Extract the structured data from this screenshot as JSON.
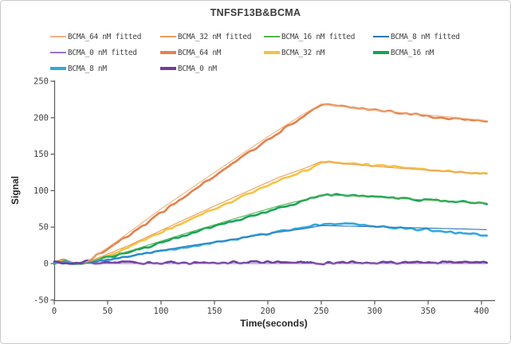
{
  "chart_data": {
    "type": "line",
    "title": "TNFSF13B&BCMA",
    "xlabel": "Time(seconds)",
    "ylabel": "Signal",
    "xlim": [
      0,
      411
    ],
    "ylim": [
      -50,
      250
    ],
    "x_ticks": [
      0,
      50,
      100,
      150,
      200,
      250,
      300,
      350,
      400
    ],
    "y_ticks": [
      -50,
      0,
      50,
      100,
      150,
      200,
      250
    ],
    "grid": false,
    "legend_position": "top",
    "axis_color": "#595959",
    "tick_label_color": "#3f3f3f",
    "phases": {
      "association_start_s": 28,
      "peak_s": 250,
      "end_s": 405
    },
    "series": [
      {
        "id": "fit64",
        "label": "BCMA_64 nM fitted",
        "role": "fitted",
        "color": "#F3B183",
        "width": 1.1,
        "noise": 0,
        "seed": 11,
        "keypoints": [
          [
            28,
            0
          ],
          [
            60,
            32
          ],
          [
            100,
            75
          ],
          [
            150,
            125
          ],
          [
            200,
            174
          ],
          [
            230,
            202
          ],
          [
            250,
            219
          ],
          [
            265,
            216
          ],
          [
            285,
            212.5
          ],
          [
            310,
            209
          ],
          [
            340,
            205
          ],
          [
            370,
            201
          ],
          [
            405,
            196
          ]
        ]
      },
      {
        "id": "fit32",
        "label": "BCMA_32 nM fitted",
        "role": "fitted",
        "color": "#EE9C5F",
        "width": 1.1,
        "noise": 0,
        "seed": 12,
        "keypoints": [
          [
            28,
            0
          ],
          [
            70,
            25
          ],
          [
            120,
            59
          ],
          [
            170,
            92
          ],
          [
            210,
            118
          ],
          [
            235,
            131
          ],
          [
            250,
            140
          ],
          [
            268,
            137.5
          ],
          [
            290,
            134.5
          ],
          [
            320,
            131
          ],
          [
            350,
            128
          ],
          [
            380,
            125
          ],
          [
            405,
            123
          ]
        ]
      },
      {
        "id": "fit16",
        "label": "BCMA_16 nM fitted",
        "role": "fitted",
        "color": "#55B055",
        "width": 1.1,
        "noise": 0,
        "seed": 13,
        "keypoints": [
          [
            28,
            0
          ],
          [
            70,
            17
          ],
          [
            120,
            40
          ],
          [
            170,
            62
          ],
          [
            210,
            79
          ],
          [
            235,
            88
          ],
          [
            250,
            94
          ],
          [
            268,
            93.5
          ],
          [
            290,
            92
          ],
          [
            320,
            89.5
          ],
          [
            350,
            87
          ],
          [
            380,
            84.5
          ],
          [
            405,
            83
          ]
        ]
      },
      {
        "id": "fit8",
        "label": "BCMA_8 nM fitted",
        "role": "fitted",
        "color": "#2E74B5",
        "width": 1.1,
        "noise": 0,
        "seed": 14,
        "keypoints": [
          [
            28,
            0
          ],
          [
            70,
            10
          ],
          [
            120,
            23
          ],
          [
            170,
            34
          ],
          [
            210,
            43
          ],
          [
            235,
            48
          ],
          [
            250,
            52
          ],
          [
            270,
            51.5
          ],
          [
            300,
            50.5
          ],
          [
            340,
            49
          ],
          [
            380,
            47.5
          ],
          [
            405,
            46.5
          ]
        ]
      },
      {
        "id": "fit0",
        "label": "BCMA_0 nM fitted",
        "role": "fitted",
        "color": "#9B72C8",
        "width": 1.1,
        "noise": 0,
        "seed": 15,
        "keypoints": [
          [
            28,
            0
          ],
          [
            405,
            0
          ]
        ]
      },
      {
        "id": "m64",
        "label": "BCMA_64 nM",
        "role": "measured",
        "color": "#E2824D",
        "width": 2.6,
        "noise": 1.3,
        "seed": 21,
        "keypoints": [
          [
            0,
            2
          ],
          [
            5,
            4
          ],
          [
            10,
            4.5
          ],
          [
            16,
            2
          ],
          [
            22,
            -0.5
          ],
          [
            28,
            0.5
          ],
          [
            60,
            29
          ],
          [
            100,
            70
          ],
          [
            150,
            120
          ],
          [
            200,
            170
          ],
          [
            225,
            194
          ],
          [
            240,
            208
          ],
          [
            248,
            216
          ],
          [
            254,
            218
          ],
          [
            262,
            216.5
          ],
          [
            275,
            214
          ],
          [
            295,
            211
          ],
          [
            315,
            208
          ],
          [
            335,
            205
          ],
          [
            355,
            202
          ],
          [
            375,
            199
          ],
          [
            390,
            197
          ],
          [
            405,
            195
          ]
        ]
      },
      {
        "id": "m32",
        "label": "BCMA_32 nM",
        "role": "measured",
        "color": "#F5C342",
        "width": 2.6,
        "noise": 1.1,
        "seed": 22,
        "keypoints": [
          [
            0,
            1.5
          ],
          [
            5,
            3
          ],
          [
            10,
            3.5
          ],
          [
            16,
            1.5
          ],
          [
            22,
            -0.5
          ],
          [
            28,
            0.5
          ],
          [
            60,
            17
          ],
          [
            100,
            43
          ],
          [
            150,
            75
          ],
          [
            200,
            107
          ],
          [
            225,
            122
          ],
          [
            240,
            131
          ],
          [
            250,
            139
          ],
          [
            256,
            140
          ],
          [
            265,
            139
          ],
          [
            280,
            137
          ],
          [
            300,
            134.5
          ],
          [
            325,
            131.5
          ],
          [
            350,
            129
          ],
          [
            375,
            126
          ],
          [
            405,
            123
          ]
        ]
      },
      {
        "id": "m16",
        "label": "BCMA_16 nM",
        "role": "measured",
        "color": "#16A456",
        "width": 2.6,
        "noise": 1.2,
        "seed": 23,
        "keypoints": [
          [
            0,
            1.5
          ],
          [
            5,
            2.5
          ],
          [
            10,
            3
          ],
          [
            16,
            1
          ],
          [
            22,
            -0.5
          ],
          [
            28,
            0.5
          ],
          [
            60,
            11
          ],
          [
            100,
            29
          ],
          [
            150,
            51
          ],
          [
            200,
            72
          ],
          [
            225,
            82
          ],
          [
            240,
            89
          ],
          [
            250,
            93
          ],
          [
            258,
            94.5
          ],
          [
            268,
            94.5
          ],
          [
            282,
            93.5
          ],
          [
            300,
            92
          ],
          [
            325,
            89.5
          ],
          [
            350,
            87
          ],
          [
            375,
            85
          ],
          [
            405,
            83
          ]
        ]
      },
      {
        "id": "m8",
        "label": "BCMA_8 nM",
        "role": "measured",
        "color": "#2FA8DF",
        "width": 2.6,
        "noise": 1.2,
        "seed": 24,
        "keypoints": [
          [
            0,
            1
          ],
          [
            5,
            2
          ],
          [
            10,
            2.5
          ],
          [
            16,
            0.5
          ],
          [
            22,
            -0.5
          ],
          [
            28,
            0.5
          ],
          [
            60,
            7
          ],
          [
            100,
            17
          ],
          [
            150,
            29
          ],
          [
            200,
            41
          ],
          [
            225,
            47
          ],
          [
            240,
            51
          ],
          [
            252,
            54.5
          ],
          [
            262,
            55
          ],
          [
            275,
            54
          ],
          [
            290,
            52.5
          ],
          [
            310,
            50.5
          ],
          [
            335,
            48
          ],
          [
            360,
            45
          ],
          [
            380,
            42.5
          ],
          [
            395,
            40.5
          ],
          [
            405,
            39
          ]
        ]
      },
      {
        "id": "m0",
        "label": "BCMA_0 nM",
        "role": "measured",
        "color": "#6C3E9E",
        "width": 2.6,
        "noise": 1.6,
        "seed": 25,
        "keypoints": [
          [
            0,
            1.5
          ],
          [
            405,
            1.5
          ]
        ]
      }
    ]
  }
}
